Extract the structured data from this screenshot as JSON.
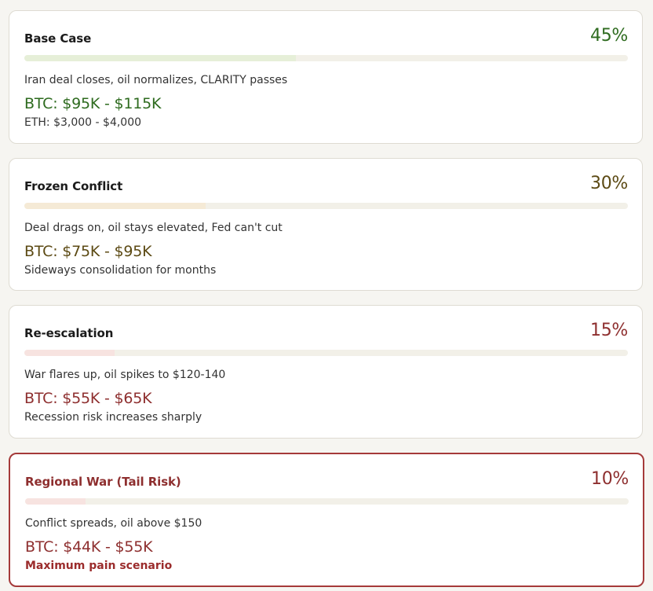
{
  "scenarios": [
    {
      "title": "Base Case",
      "probability": "45%",
      "probability_value": 45,
      "description": "Iran deal closes, oil normalizes, CLARITY passes",
      "btc_range": "BTC: $95K - $115K",
      "note": "ETH: $3,000 - $4,000",
      "accent_color": "#2e6b1f",
      "fill_color": "#e6efd8"
    },
    {
      "title": "Frozen Conflict",
      "probability": "30%",
      "probability_value": 30,
      "description": "Deal drags on, oil stays elevated, Fed can't cut",
      "btc_range": "BTC: $75K - $95K",
      "note": "Sideways consolidation for months",
      "accent_color": "#5c4a14",
      "fill_color": "#f5ead6"
    },
    {
      "title": "Re-escalation",
      "probability": "15%",
      "probability_value": 15,
      "description": "War flares up, oil spikes to $120-140",
      "btc_range": "BTC: $55K - $65K",
      "note": "Recession risk increases sharply",
      "accent_color": "#8e2f2f",
      "fill_color": "#f7e3e0"
    },
    {
      "title": "Regional War (Tail Risk)",
      "probability": "10%",
      "probability_value": 10,
      "description": "Conflict spreads, oil above $150",
      "btc_range": "BTC: $44K - $55K",
      "note": "Maximum pain scenario",
      "accent_color": "#8e2f2f",
      "fill_color": "#f7e3e0",
      "title_color": "#8e2f2f",
      "border_color": "#a53a3a"
    }
  ]
}
